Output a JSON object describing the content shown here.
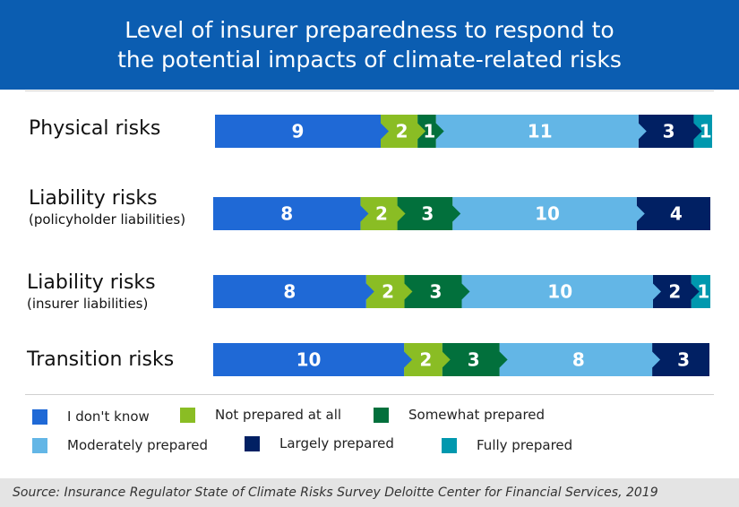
{
  "chart_data": {
    "type": "bar",
    "orientation": "horizontal-stacked",
    "title": "Level of insurer preparedness to respond to the potential impacts of climate-related risks",
    "title_lines": [
      "Level of insurer preparedness to respond to",
      "the potential impacts of climate-related risks"
    ],
    "categories": [
      {
        "main": "Physical risks",
        "sub": ""
      },
      {
        "main": "Liability risks",
        "sub": "(policyholder liabilities)"
      },
      {
        "main": "Liability risks",
        "sub": "(insurer liabilities)"
      },
      {
        "main": "Transition risks",
        "sub": ""
      }
    ],
    "series": [
      {
        "name": "I don't know",
        "color": "#1f69d6",
        "values": [
          9,
          8,
          8,
          10
        ]
      },
      {
        "name": "Not prepared at all",
        "color": "#8abd24",
        "values": [
          2,
          2,
          2,
          2
        ]
      },
      {
        "name": "Somewhat prepared",
        "color": "#02703c",
        "values": [
          1,
          3,
          3,
          3
        ]
      },
      {
        "name": "Moderately prepared",
        "color": "#63b6e6",
        "values": [
          11,
          10,
          10,
          8
        ]
      },
      {
        "name": "Largely prepared",
        "color": "#012063",
        "values": [
          3,
          4,
          2,
          3
        ]
      },
      {
        "name": "Fully prepared",
        "color": "#0098ae",
        "values": [
          1,
          0,
          1,
          0
        ]
      }
    ],
    "legend_placement": "bottom",
    "grid": false,
    "source": "Source: Insurance Regulator State of Climate Risks Survey Deloitte Center for Financial Services, 2019"
  }
}
